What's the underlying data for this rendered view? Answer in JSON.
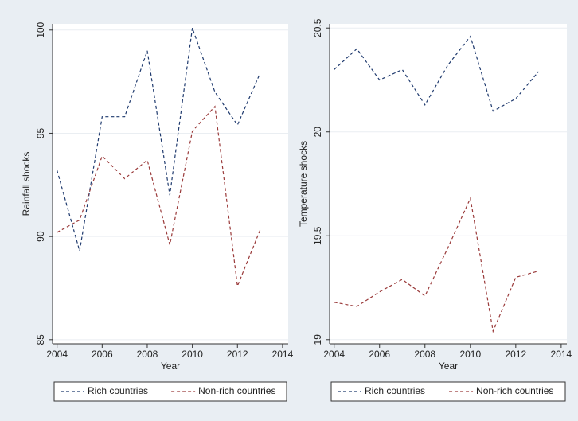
{
  "chart_data": [
    {
      "type": "line",
      "x_label": "Year",
      "y_label": "Rainfall shocks",
      "x": [
        2004,
        2005,
        2006,
        2007,
        2008,
        2009,
        2010,
        2011,
        2012,
        2013
      ],
      "xlim": [
        2003.8,
        2014.25
      ],
      "xticks": [
        2004,
        2006,
        2008,
        2010,
        2012,
        2014
      ],
      "ylim": [
        84.8,
        100.3
      ],
      "yticks": [
        85,
        90,
        95,
        100
      ],
      "grid": true,
      "series": [
        {
          "name": "Rich countries",
          "color": "#1f3a6e",
          "values": [
            93.2,
            89.3,
            95.8,
            95.8,
            99.0,
            92.0,
            100.1,
            97.0,
            95.4,
            97.9
          ]
        },
        {
          "name": "Non-rich countries",
          "color": "#9a3a3a",
          "values": [
            90.2,
            90.8,
            93.9,
            92.8,
            93.7,
            89.6,
            95.1,
            96.3,
            87.6,
            90.3
          ]
        }
      ]
    },
    {
      "type": "line",
      "x_label": "Year",
      "y_label": "Temperature shocks",
      "x": [
        2004,
        2005,
        2006,
        2007,
        2008,
        2009,
        2010,
        2011,
        2012,
        2013
      ],
      "xlim": [
        2003.8,
        2014.25
      ],
      "xticks": [
        2004,
        2006,
        2008,
        2010,
        2012,
        2014
      ],
      "ylim": [
        18.98,
        20.52
      ],
      "yticks": [
        19,
        19.5,
        20,
        20.5
      ],
      "grid": true,
      "series": [
        {
          "name": "Rich countries",
          "color": "#1f3a6e",
          "values": [
            20.3,
            20.4,
            20.25,
            20.3,
            20.13,
            20.32,
            20.46,
            20.1,
            20.16,
            20.29
          ]
        },
        {
          "name": "Non-rich countries",
          "color": "#9a3a3a",
          "values": [
            19.18,
            19.16,
            19.23,
            19.29,
            19.21,
            19.44,
            19.68,
            19.04,
            19.3,
            19.33
          ]
        }
      ]
    }
  ]
}
